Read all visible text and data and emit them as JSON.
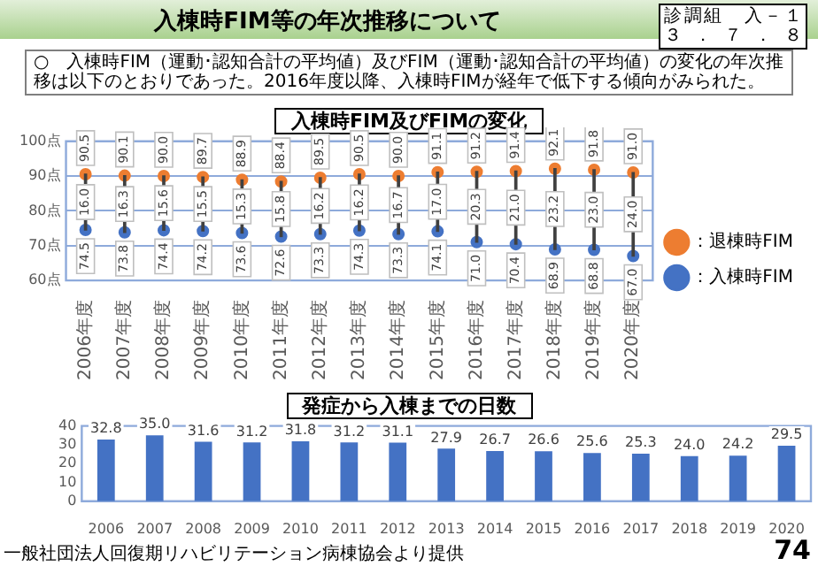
{
  "chart_data": [
    {
      "type": "other",
      "title": "入棟時FIM等の年次推移について",
      "annotations": [
        "診調組　入－１",
        "３．７．８",
        "○　入棟時FIM（運動･認知合計の平均値）及びFIM（運動･認知合計の平均値）の変化の年次推移は以下のとおりであった。2016年度以降、入棟時FIMが経年で低下する傾向がみられた。",
        "74"
      ]
    },
    {
      "type": "scatter",
      "title": "入棟時FIM及びFIMの変化",
      "categories": [
        "2006年度",
        "2007年度",
        "2008年度",
        "2009年度",
        "2010年度",
        "2011年度",
        "2012年度",
        "2013年度",
        "2014年度",
        "2015年度",
        "2016年度",
        "2017年度",
        "2018年度",
        "2019年度",
        "2020年度"
      ],
      "series": [
        {
          "name": "：退棟時FIM",
          "color": "#ed7d31",
          "values": [
            90.5,
            90.1,
            90.0,
            89.7,
            88.9,
            88.4,
            89.5,
            90.5,
            90.0,
            91.1,
            91.2,
            91.4,
            92.1,
            91.8,
            91.0
          ],
          "value_labels": [
            "90.5",
            "90.1",
            "90.0",
            "89.7",
            "88.9",
            "88.4",
            "89.5",
            "90.5",
            "90.0",
            "91.1",
            "91.2",
            "91.4",
            "92.1",
            "91.8",
            "91.0"
          ]
        },
        {
          "name": "：入棟時FIM",
          "color": "#4472c4",
          "values": [
            74.5,
            73.8,
            74.4,
            74.2,
            73.6,
            72.6,
            73.3,
            74.3,
            73.3,
            74.1,
            71.0,
            70.4,
            68.9,
            68.8,
            67.0
          ],
          "value_labels": [
            "74.5",
            "73.8",
            "74.4",
            "74.2",
            "73.6",
            "72.6",
            "73.3",
            "74.3",
            "73.3",
            "74.1",
            "71.0",
            "70.4",
            "68.9",
            "68.8",
            "67.0"
          ]
        },
        {
          "type": "bar",
          "color": "#404040",
          "base": [
            74.5,
            73.8,
            74.4,
            74.2,
            73.6,
            72.6,
            73.3,
            74.3,
            73.3,
            74.1,
            71.0,
            70.4,
            68.9,
            68.8,
            67.0
          ],
          "values": [
            16.0,
            16.3,
            15.6,
            15.5,
            15.3,
            15.8,
            16.2,
            16.2,
            16.7,
            17.0,
            20.3,
            21.0,
            23.2,
            23.0,
            24.0
          ],
          "value_labels": [
            "16.0",
            "16.3",
            "15.6",
            "15.5",
            "15.3",
            "15.8",
            "16.2",
            "16.2",
            "16.7",
            "17.0",
            "20.3",
            "21.0",
            "23.2",
            "23.0",
            "24.0"
          ]
        }
      ],
      "ylim": [
        60,
        100
      ],
      "yticks": [
        {
          "value": 60,
          "label": "60点"
        },
        {
          "value": 70,
          "label": "70点"
        },
        {
          "value": 80,
          "label": "80点"
        },
        {
          "value": 90,
          "label": "90点"
        },
        {
          "value": 100,
          "label": "100点"
        }
      ],
      "grid": "y",
      "legend": "right",
      "marker": "circle",
      "data_labels": true
    },
    {
      "type": "bar",
      "title": "発症から入棟までの日数",
      "categories": [
        "2006",
        "2007",
        "2008",
        "2009",
        "2010",
        "2011",
        "2012",
        "2013",
        "2014",
        "2015",
        "2016",
        "2017",
        "2018",
        "2019",
        "2020"
      ],
      "values": [
        32.8,
        35.0,
        31.6,
        31.2,
        31.8,
        31.2,
        31.1,
        27.9,
        26.7,
        26.6,
        25.6,
        25.3,
        24.0,
        24.2,
        29.5
      ],
      "value_labels": [
        "32.8",
        "35.0",
        "31.6",
        "31.2",
        "31.8",
        "31.2",
        "31.1",
        "27.9",
        "26.7",
        "26.6",
        "25.6",
        "25.3",
        "24.0",
        "24.2",
        "29.5"
      ],
      "color": "#4472c4",
      "data_labels": true,
      "ylim": [
        0,
        40
      ],
      "yticks": [
        0,
        10,
        20,
        30,
        40
      ],
      "annotations": [
        "一般社団法人回復期リハビリテーション病棟協会より提供"
      ]
    }
  ]
}
